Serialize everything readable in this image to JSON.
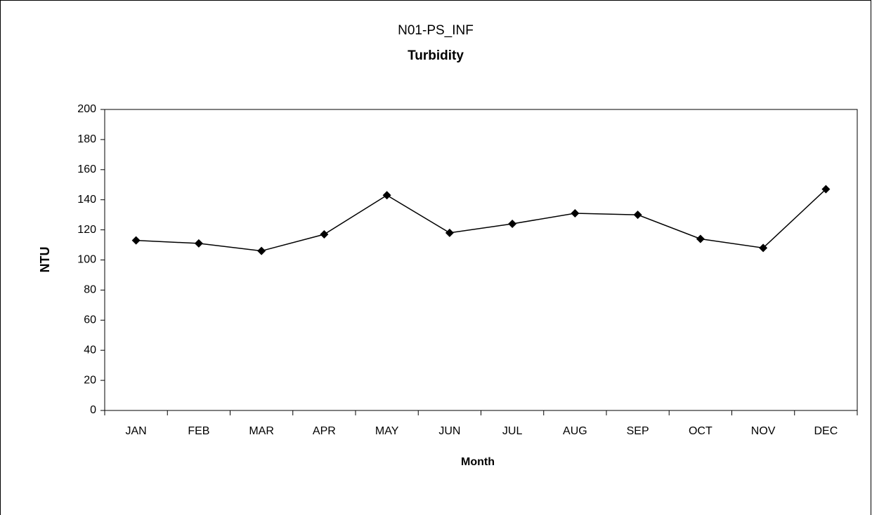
{
  "chart_data": {
    "type": "line",
    "title": "N01-PS_INF",
    "subtitle": "Turbidity",
    "x_label": "Month",
    "y_label": "NTU",
    "categories": [
      "JAN",
      "FEB",
      "MAR",
      "APR",
      "MAY",
      "JUN",
      "JUL",
      "AUG",
      "SEP",
      "OCT",
      "NOV",
      "DEC"
    ],
    "values": [
      113,
      111,
      106,
      117,
      143,
      118,
      124,
      131,
      130,
      114,
      108,
      147
    ],
    "color": "#000000",
    "ylim": [
      0,
      200
    ],
    "yticks": [
      0,
      20,
      40,
      60,
      80,
      100,
      120,
      140,
      160,
      180,
      200
    ],
    "grid": false
  }
}
